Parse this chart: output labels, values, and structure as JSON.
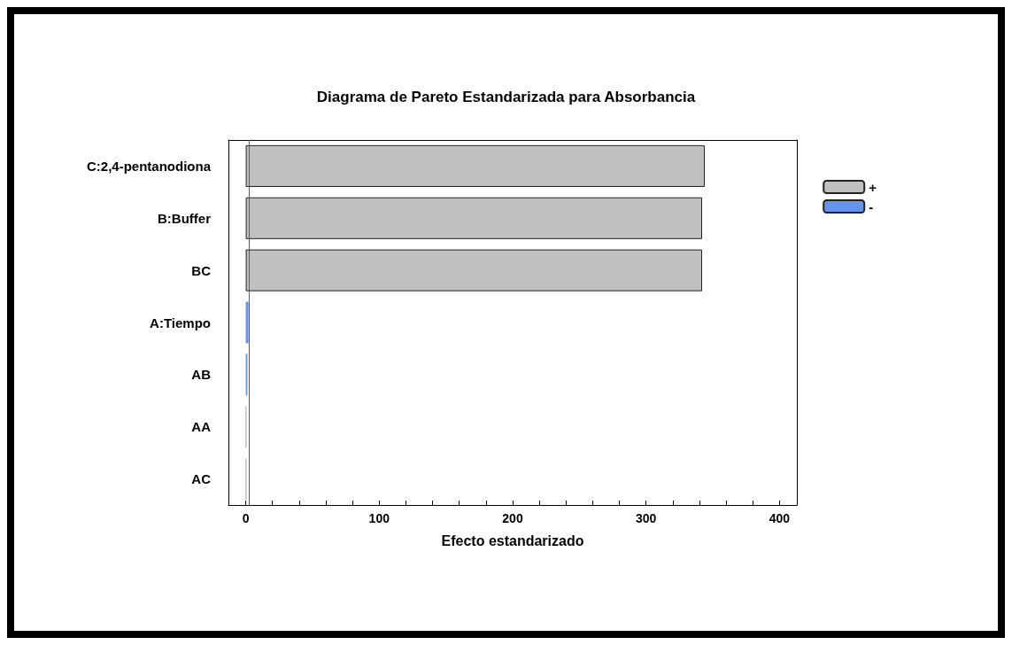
{
  "chart_data": {
    "type": "bar",
    "orientation": "horizontal",
    "stacked": true,
    "title": "Diagrama de Pareto Estandarizada para Absorbancia",
    "xlabel": "Efecto estandarizado",
    "categories": [
      "C:2,4-pentanodiona",
      "B:Buffer",
      "BC",
      "A:Tiempo",
      "AB",
      "AA",
      "AC"
    ],
    "series": [
      {
        "name": "+",
        "color": "#c0c0c0",
        "values": [
          344,
          342,
          342,
          null,
          null,
          0.3,
          0.3
        ]
      },
      {
        "name": "-",
        "color": "#6495ed",
        "values": [
          null,
          null,
          null,
          2,
          1.2,
          null,
          null
        ]
      }
    ],
    "xlim": [
      -13,
      413
    ],
    "xticks": [
      0,
      {
        "value": 20,
        "label": null
      },
      {
        "value": 40,
        "label": null
      },
      {
        "value": 60,
        "label": null
      },
      {
        "value": 80,
        "label": null
      },
      100,
      {
        "value": 120,
        "label": null
      },
      {
        "value": 140,
        "label": null
      },
      {
        "value": 160,
        "label": null
      },
      {
        "value": 180,
        "label": null
      },
      200,
      {
        "value": 220,
        "label": null
      },
      {
        "value": 240,
        "label": null
      },
      {
        "value": 260,
        "label": null
      },
      {
        "value": 280,
        "label": null
      },
      300,
      {
        "value": 320,
        "label": null
      },
      {
        "value": 340,
        "label": null
      },
      {
        "value": 360,
        "label": null
      },
      {
        "value": 380,
        "label": null
      },
      400
    ],
    "ref_lines": [
      {
        "axis": "x",
        "value": 2.4,
        "color": "#4a4af0"
      }
    ],
    "grid": false,
    "legend": "top right"
  }
}
